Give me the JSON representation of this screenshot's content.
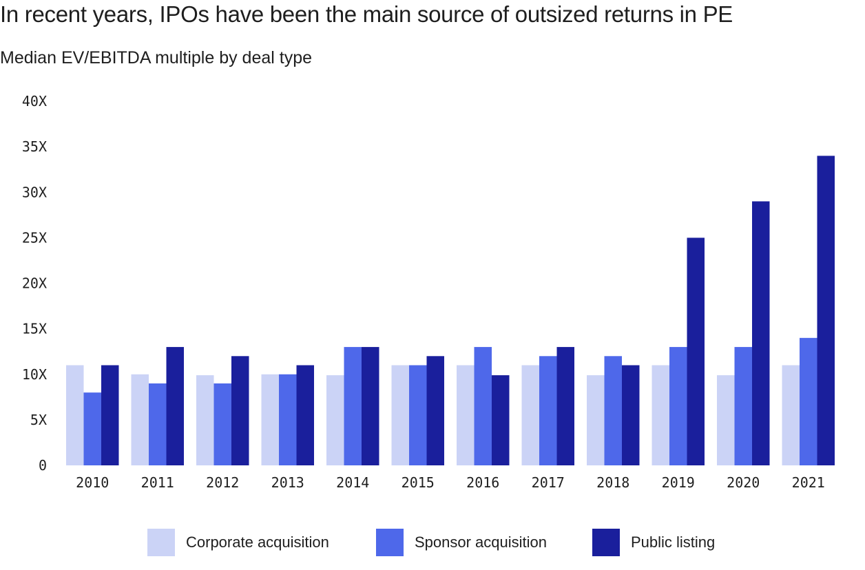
{
  "title": "In recent years, IPOs have been the main source of outsized returns in PE",
  "subtitle": "Median EV/EBITDA multiple by deal type",
  "chart_data": {
    "type": "bar",
    "title": "In recent years, IPOs have been the main source of outsized returns in PE",
    "subtitle": "Median EV/EBITDA multiple by deal type",
    "xlabel": "",
    "ylabel": "",
    "ylim": [
      0,
      40
    ],
    "yticks": [
      0,
      5,
      10,
      15,
      20,
      25,
      30,
      35,
      40
    ],
    "ytick_labels": [
      "0",
      "5X",
      "10X",
      "15X",
      "20X",
      "25X",
      "30X",
      "35X",
      "40X"
    ],
    "grid": false,
    "legend_position": "bottom",
    "categories": [
      "2010",
      "2011",
      "2012",
      "2013",
      "2014",
      "2015",
      "2016",
      "2017",
      "2018",
      "2019",
      "2020",
      "2021"
    ],
    "series": [
      {
        "name": "Corporate acquisition",
        "color": "#cbd3f6",
        "values": [
          11,
          10,
          9.9,
          10,
          9.9,
          11,
          11,
          11,
          9.9,
          11,
          9.9,
          11
        ]
      },
      {
        "name": "Sponsor acquisition",
        "color": "#4e68ea",
        "values": [
          8,
          9,
          9,
          10,
          13,
          11,
          13,
          12,
          12,
          13,
          13,
          14
        ]
      },
      {
        "name": "Public listing",
        "color": "#1a1f9c",
        "values": [
          11,
          13,
          12,
          11,
          13,
          12,
          9.9,
          13,
          11,
          25,
          29,
          34
        ]
      }
    ]
  }
}
